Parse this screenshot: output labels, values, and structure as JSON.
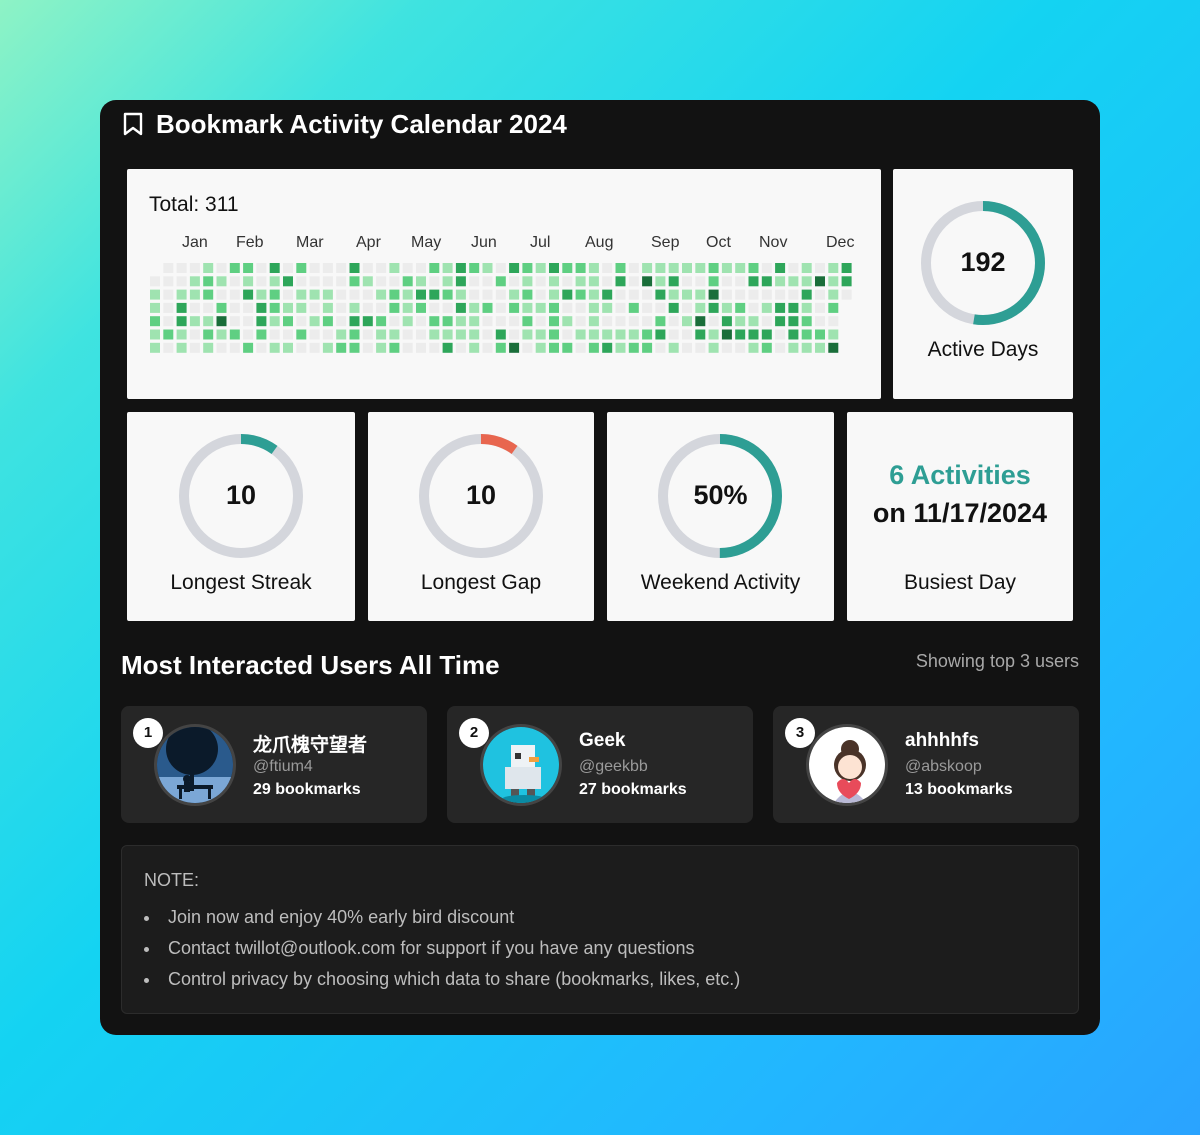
{
  "header": {
    "title": "Bookmark Activity Calendar 2024",
    "icon": "bookmark-icon"
  },
  "heatmap": {
    "total_label": "Total: 311",
    "months": [
      "Jan",
      "Feb",
      "Mar",
      "Apr",
      "May",
      "Jun",
      "Jul",
      "Aug",
      "Sep",
      "Oct",
      "Nov",
      "Dec"
    ],
    "colors": [
      "#ececec",
      "#9fe3b0",
      "#5fcf82",
      "#2ea65a",
      "#1a6e3a"
    ]
  },
  "stats": {
    "active_days": {
      "value": "192",
      "label": "Active Days",
      "fraction": 0.525
    },
    "longest_streak": {
      "value": "10",
      "label": "Longest Streak",
      "fraction": 0.1
    },
    "longest_gap": {
      "value": "10",
      "label": "Longest Gap",
      "fraction": 0.1
    },
    "weekend_activity": {
      "value": "50%",
      "label": "Weekend Activity",
      "fraction": 0.5
    },
    "busiest_day": {
      "title": "6 Activities",
      "date": "on 11/17/2024",
      "label": "Busiest Day"
    },
    "colors": {
      "teal": "#2e9e94",
      "orange": "#e8664f",
      "track": "#d4d6dc"
    }
  },
  "users_section": {
    "title": "Most Interacted Users All Time",
    "showing": "Showing top 3 users",
    "users": [
      {
        "rank": "1",
        "name": "龙爪槐守望者",
        "handle": "@ftium4",
        "count": "29 bookmarks"
      },
      {
        "rank": "2",
        "name": "Geek",
        "handle": "@geekbb",
        "count": "27 bookmarks"
      },
      {
        "rank": "3",
        "name": "ahhhhfs",
        "handle": "@abskoop",
        "count": "13 bookmarks"
      }
    ]
  },
  "note": {
    "title": "NOTE:",
    "items": [
      "Join now and enjoy 40% early bird discount",
      "Contact twillot@outlook.com for support if you have any questions",
      "Control privacy by choosing which data to share (bookmarks, likes, etc.)"
    ]
  }
}
